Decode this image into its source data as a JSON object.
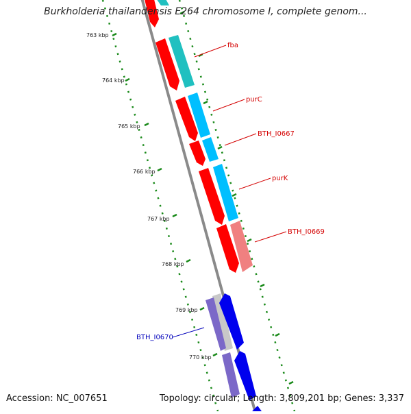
{
  "title": "Burkholderia thailandensis E264 chromosome I, complete genom...",
  "accession": "Accession: NC_007651",
  "topology": "Topology: circular; Length: 3,809,201 bp; Genes: 3,337",
  "ruler_labels": [
    "763 kbp",
    "764 kbp",
    "765 kbp",
    "766 kbp",
    "767 kbp",
    "768 kbp",
    "769 kbp",
    "770 kbp"
  ],
  "gene_labels": [
    "fba",
    "purC",
    "BTH_I0667",
    "purK",
    "BTH_I0669",
    "BTH_I0670"
  ],
  "colors": {
    "forward_cds": "#ff0000",
    "forward_cds_light": "#f08080",
    "reverse_cds": "#0000ff",
    "reverse_cds_light": "#7b68c8",
    "cyan_track": "#00bfff",
    "teal_track": "#20c0c0",
    "backbone": "#888888",
    "ruler": "#1a8a1a",
    "label_red": "#d40000",
    "label_blue": "#0000bb"
  }
}
